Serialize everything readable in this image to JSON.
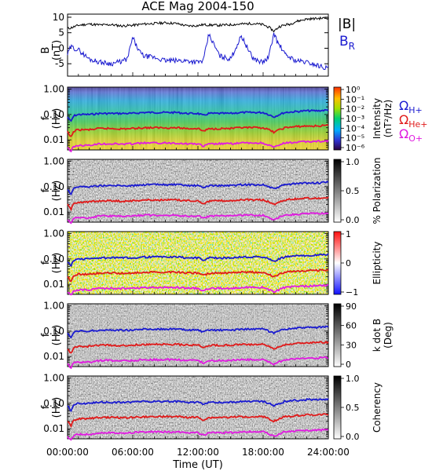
{
  "chart_data": {
    "type": "line",
    "title": "ACE Mag 2004-150",
    "xlabel": "Time (UT)",
    "x_tick_labels": [
      "00:00:00",
      "06:00:00",
      "12:00:00",
      "18:00:00",
      "24:00:00"
    ],
    "x_range_hours": [
      0,
      24
    ],
    "panels": [
      {
        "id": "bfield",
        "ylabel": [
          "B",
          "(nT)"
        ],
        "y_range": [
          -9,
          11
        ],
        "y_ticks": [
          {
            "v": 10,
            "label": "10"
          },
          {
            "v": 5,
            "label": "5"
          },
          {
            "v": 0,
            "label": "0"
          },
          {
            "v": -5,
            "label": "-5"
          }
        ],
        "legend": [
          {
            "text": "|B|",
            "color": "#000000"
          },
          {
            "text": "B",
            "sub": "R",
            "color": "#1a1ad0"
          }
        ],
        "series": [
          {
            "name": "|B|",
            "color": "#000000",
            "x": [
              0,
              0.5,
              1,
              1.5,
              2,
              3,
              4,
              5,
              6,
              7,
              8,
              9,
              10,
              11,
              12,
              12.5,
              13,
              14,
              15,
              16,
              17,
              18,
              18.5,
              19,
              19.5,
              20,
              20.5,
              21,
              21.5,
              22,
              23,
              24
            ],
            "y": [
              6.3,
              6.8,
              7.4,
              7.6,
              7.8,
              7.5,
              7.6,
              7.2,
              7.4,
              7.8,
              8.0,
              8.2,
              8.0,
              7.2,
              7.3,
              7.6,
              7.5,
              7.4,
              7.6,
              7.8,
              8.0,
              7.6,
              6.8,
              5.5,
              7.0,
              7.5,
              7.8,
              8.6,
              9.0,
              9.4,
              9.6,
              9.8
            ]
          },
          {
            "name": "B_R",
            "color": "#1a1ad0",
            "x": [
              0,
              0.3,
              0.6,
              1,
              1.5,
              2,
              2.5,
              3,
              4,
              5,
              5.5,
              6,
              6.3,
              6.7,
              7,
              8,
              9,
              10,
              11,
              12,
              12.5,
              13,
              14,
              15,
              16,
              17,
              17.5,
              18,
              18.5,
              19,
              19.3,
              19.7,
              20,
              21,
              22,
              23,
              24
            ],
            "y": [
              -2.0,
              0.5,
              0.0,
              -0.5,
              -2.0,
              -3.5,
              -4.0,
              -4.5,
              -5.0,
              -4.2,
              -3.5,
              3.5,
              1.0,
              -1.5,
              -2.5,
              -3.0,
              -4.0,
              -4.0,
              -4.0,
              -4.5,
              -4.0,
              4.5,
              -2.5,
              -3.5,
              4.0,
              -3.0,
              -4.0,
              -4.5,
              -3.0,
              5.0,
              2.0,
              0.0,
              -2.0,
              -4.0,
              -4.5,
              -5.5,
              -6.5
            ]
          }
        ]
      },
      {
        "id": "intensity",
        "ylabel": [
          "f",
          "(Hz)"
        ],
        "cbar_label": [
          "Intensity",
          "(nT²/Hz)"
        ],
        "cbar_ticks": [
          "10⁰",
          "10⁻¹",
          "10⁻²",
          "10⁻³",
          "10⁻⁴",
          "10⁻⁵",
          "10⁻⁶"
        ]
      },
      {
        "id": "polarization",
        "ylabel": [
          "f",
          "(Hz)"
        ],
        "cbar_label": [
          "% Polarization"
        ],
        "cbar_ticks": [
          "1.0",
          "0.5",
          "0.0"
        ]
      },
      {
        "id": "ellipticity",
        "ylabel": [
          "f",
          "(Hz)"
        ],
        "cbar_label": [
          "Ellipticity"
        ],
        "cbar_ticks": [
          "1",
          "0",
          "−1"
        ]
      },
      {
        "id": "kdotb",
        "ylabel": [
          "f",
          "(Hz)"
        ],
        "cbar_label": [
          "k dot B",
          "(Deg)"
        ],
        "cbar_ticks": [
          "90",
          "60",
          "30",
          "0"
        ]
      },
      {
        "id": "coherency",
        "ylabel": [
          "f",
          "(Hz)"
        ],
        "cbar_label": [
          "Coherency"
        ],
        "cbar_ticks": [
          "1.0",
          "0.5",
          "0.0"
        ]
      }
    ],
    "freq_axis": {
      "scale": "log",
      "range_hz": [
        0.004,
        1.2
      ],
      "tick_labels": [
        {
          "v": 1,
          "label": "1.00"
        },
        {
          "v": 0.1,
          "label": "0.10"
        },
        {
          "v": 0.01,
          "label": "0.01"
        }
      ]
    },
    "gyrofrequency_lines": [
      {
        "name": "H+",
        "label": "Ω",
        "sub": "H+",
        "color": "#1a1ad0",
        "x": [
          0,
          0.3,
          0.6,
          1,
          2,
          3,
          4,
          5,
          6,
          7,
          8,
          9,
          10,
          11,
          12,
          12.5,
          13,
          14,
          15,
          16,
          17,
          18,
          18.5,
          19,
          19.5,
          20,
          21,
          22,
          23,
          24
        ],
        "y": [
          0.08,
          0.05,
          0.09,
          0.1,
          0.1,
          0.11,
          0.11,
          0.11,
          0.11,
          0.12,
          0.12,
          0.12,
          0.12,
          0.11,
          0.11,
          0.09,
          0.11,
          0.11,
          0.11,
          0.12,
          0.12,
          0.12,
          0.1,
          0.08,
          0.1,
          0.12,
          0.13,
          0.14,
          0.14,
          0.15
        ]
      },
      {
        "name": "He+",
        "label": "Ω",
        "sub": "He+",
        "color": "#e01a1a",
        "x": [
          0,
          0.3,
          0.6,
          1,
          2,
          3,
          4,
          5,
          6,
          7,
          8,
          9,
          10,
          11,
          12,
          12.5,
          13,
          14,
          15,
          16,
          17,
          18,
          18.5,
          19,
          19.5,
          20,
          21,
          22,
          23,
          24
        ],
        "y": [
          0.02,
          0.012,
          0.022,
          0.025,
          0.025,
          0.028,
          0.028,
          0.027,
          0.028,
          0.03,
          0.03,
          0.03,
          0.03,
          0.028,
          0.028,
          0.022,
          0.027,
          0.028,
          0.028,
          0.03,
          0.03,
          0.03,
          0.025,
          0.02,
          0.025,
          0.03,
          0.033,
          0.035,
          0.035,
          0.037
        ]
      },
      {
        "name": "O+",
        "label": "Ω",
        "sub": "O+",
        "color": "#e01ae0",
        "x": [
          0,
          0.3,
          0.6,
          1,
          2,
          3,
          4,
          5,
          6,
          7,
          8,
          9,
          10,
          11,
          12,
          12.5,
          13,
          14,
          15,
          16,
          17,
          18,
          18.5,
          19,
          19.5,
          20,
          21,
          22,
          23,
          24
        ],
        "y": [
          0.005,
          0.0035,
          0.0055,
          0.006,
          0.006,
          0.007,
          0.007,
          0.0068,
          0.007,
          0.0075,
          0.0075,
          0.0075,
          0.0075,
          0.007,
          0.007,
          0.0055,
          0.0068,
          0.007,
          0.007,
          0.0075,
          0.0075,
          0.0075,
          0.0062,
          0.005,
          0.0062,
          0.0075,
          0.008,
          0.0085,
          0.0088,
          0.009
        ]
      }
    ]
  }
}
